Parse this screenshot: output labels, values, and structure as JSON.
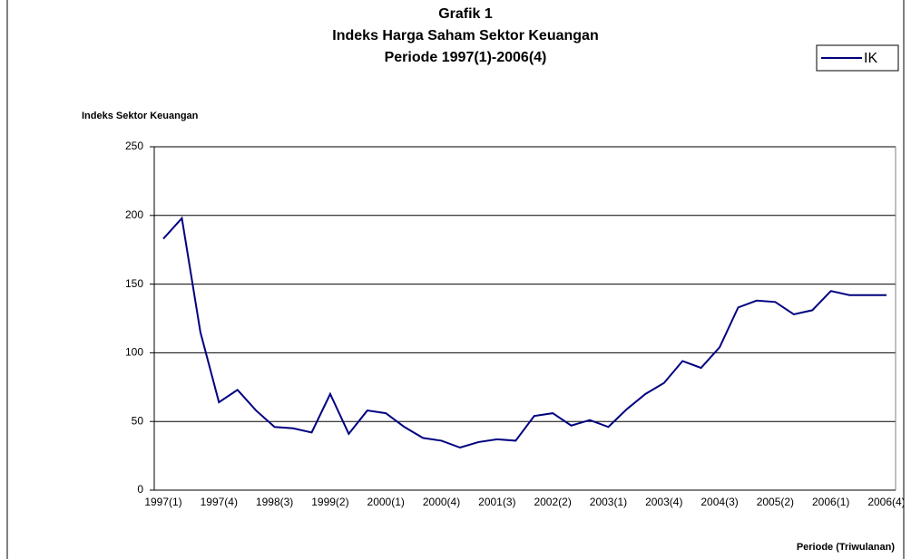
{
  "chart_data": {
    "type": "line",
    "title": "Grafik 1",
    "subtitle": [
      "Indeks Harga Saham Sektor Keuangan",
      "Periode 1997(1)-2006(4)"
    ],
    "y_label": "Indeks Sektor Keuangan",
    "x_label": "Periode (Triwulanan)",
    "categories": [
      "1997(1)",
      null,
      null,
      "1997(4)",
      null,
      null,
      "1998(3)",
      null,
      null,
      "1999(2)",
      null,
      null,
      "2000(1)",
      null,
      null,
      "2000(4)",
      null,
      null,
      "2001(3)",
      null,
      null,
      "2002(2)",
      null,
      null,
      "2003(1)",
      null,
      null,
      "2003(4)",
      null,
      null,
      "2004(3)",
      null,
      null,
      "2005(2)",
      null,
      null,
      "2006(1)",
      null,
      null,
      "2006(4)"
    ],
    "series": [
      {
        "name": "IK",
        "color": "#000080",
        "values": [
          183,
          198,
          115,
          64,
          73,
          58,
          46,
          45,
          42,
          70,
          41,
          58,
          56,
          46,
          38,
          36,
          31,
          35,
          37,
          36,
          54,
          56,
          47,
          51,
          46,
          59,
          70,
          78,
          94,
          89,
          104,
          133,
          138,
          137,
          128,
          131,
          145,
          142,
          142,
          142
        ]
      }
    ],
    "ylim": [
      0,
      250
    ],
    "yticks": [
      0,
      50,
      100,
      150,
      200,
      250
    ],
    "grid": true,
    "legend": "top-right"
  }
}
